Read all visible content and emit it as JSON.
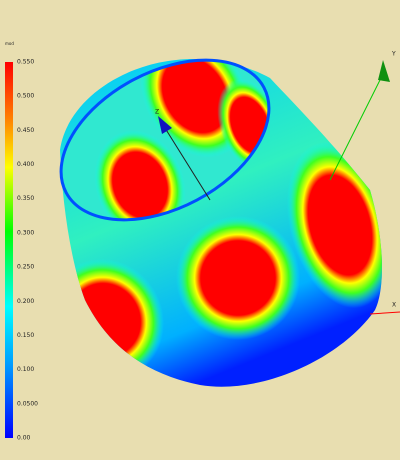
{
  "colorbar": {
    "labels": [
      "0.550",
      "0.500",
      "0.450",
      "0.400",
      "0.350",
      "0.300",
      "0.250",
      "0.200",
      "0.150",
      "0.100",
      "0.0500",
      "0.00"
    ]
  },
  "axes": {
    "y": "Y",
    "x": "X",
    "z": "Z"
  }
}
